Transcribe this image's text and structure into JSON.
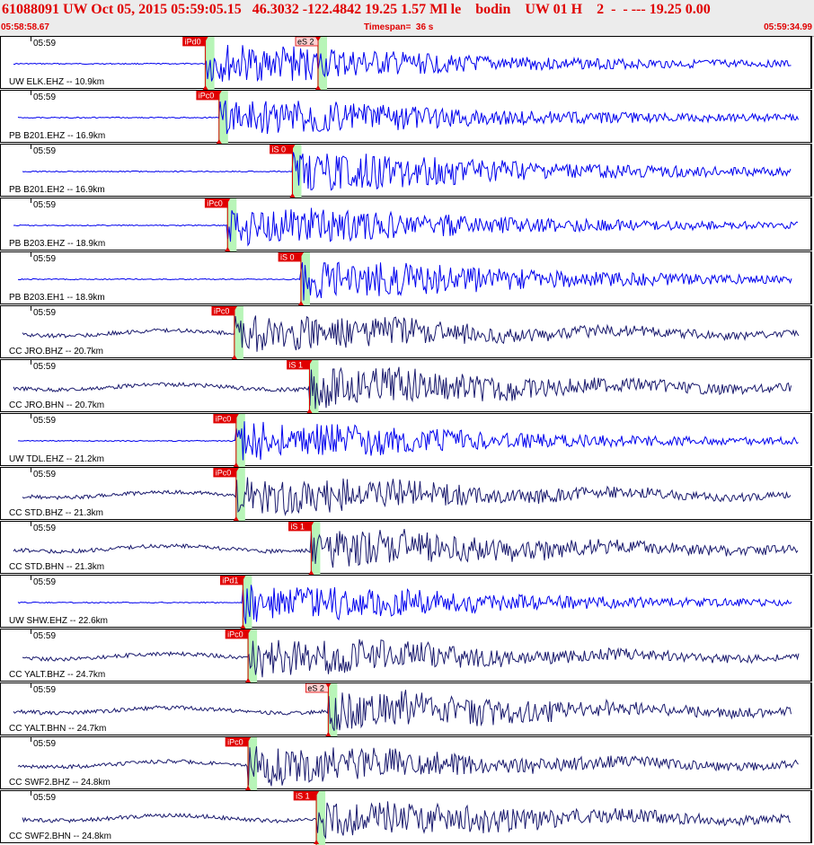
{
  "header": {
    "title": "61088091 UW Oct 05, 2015 05:59:05.15   46.3032 -122.4842 19.25 1.57 Ml le    bodin    UW 01 H    2  -  - --- 19.25 0.00",
    "start_time": "05:58:58.67",
    "timespan": "Timespan=  36 s",
    "end_time": "05:59:34.99"
  },
  "colors": {
    "header_text": "#e00000",
    "blue_trace": "#0000ee",
    "navy_trace": "#1a1a6e",
    "pick_band": "#b8f5b8",
    "pick_red": "#e00000"
  },
  "panels": [
    {
      "time": "05:59",
      "label": "UW ELK.EHZ -- 10.9km",
      "color": "blue",
      "picks": [
        {
          "label": "iPd0",
          "sec": 8.7
        },
        {
          "label": "eS 2",
          "sec": 15.3
        }
      ]
    },
    {
      "time": "05:59",
      "label": "PB B201.EHZ -- 16.9km",
      "color": "blue",
      "picks": [
        {
          "label": "iPc0",
          "sec": 9.5
        }
      ]
    },
    {
      "time": "05:59",
      "label": "PB B201.EH2 -- 16.9km",
      "color": "blue",
      "picks": [
        {
          "label": "iS 0",
          "sec": 13.8
        }
      ]
    },
    {
      "time": "05:59",
      "label": "PB B203.EHZ -- 18.9km",
      "color": "blue",
      "picks": [
        {
          "label": "iPc0",
          "sec": 10.0
        }
      ]
    },
    {
      "time": "05:59",
      "label": "PB B203.EH1 -- 18.9km",
      "color": "blue",
      "picks": [
        {
          "label": "iS 0",
          "sec": 14.3
        }
      ]
    },
    {
      "time": "05:59",
      "label": "CC JRO.BHZ -- 20.7km",
      "color": "navy",
      "picks": [
        {
          "label": "iPc0",
          "sec": 10.4
        }
      ]
    },
    {
      "time": "05:59",
      "label": "CC JRO.BHN -- 20.7km",
      "color": "navy",
      "picks": [
        {
          "label": "iS 1",
          "sec": 14.8
        }
      ]
    },
    {
      "time": "05:59",
      "label": "UW TDL.EHZ -- 21.2km",
      "color": "blue",
      "picks": [
        {
          "label": "iPc0",
          "sec": 10.5
        }
      ]
    },
    {
      "time": "05:59",
      "label": "CC STD.BHZ -- 21.3km",
      "color": "navy",
      "picks": [
        {
          "label": "iPc0",
          "sec": 10.5
        }
      ]
    },
    {
      "time": "05:59",
      "label": "CC STD.BHN -- 21.3km",
      "color": "navy",
      "picks": [
        {
          "label": "iS 1",
          "sec": 14.9
        }
      ]
    },
    {
      "time": "05:59",
      "label": "UW SHW.EHZ -- 22.6km",
      "color": "blue",
      "picks": [
        {
          "label": "iPd1",
          "sec": 10.9
        }
      ]
    },
    {
      "time": "05:59",
      "label": "CC YALT.BHZ -- 24.7km",
      "color": "navy",
      "picks": [
        {
          "label": "iPc0",
          "sec": 11.2
        }
      ]
    },
    {
      "time": "05:59",
      "label": "CC YALT.BHN -- 24.7km",
      "color": "navy",
      "picks": [
        {
          "label": "eS 2",
          "sec": 15.9
        }
      ]
    },
    {
      "time": "05:59",
      "label": "CC SWF2.BHZ -- 24.8km",
      "color": "navy",
      "picks": [
        {
          "label": "iPc0",
          "sec": 11.2
        }
      ]
    },
    {
      "time": "05:59",
      "label": "CC SWF2.BHN -- 24.8km",
      "color": "navy",
      "picks": [
        {
          "label": "iS 1",
          "sec": 15.2
        }
      ]
    }
  ]
}
